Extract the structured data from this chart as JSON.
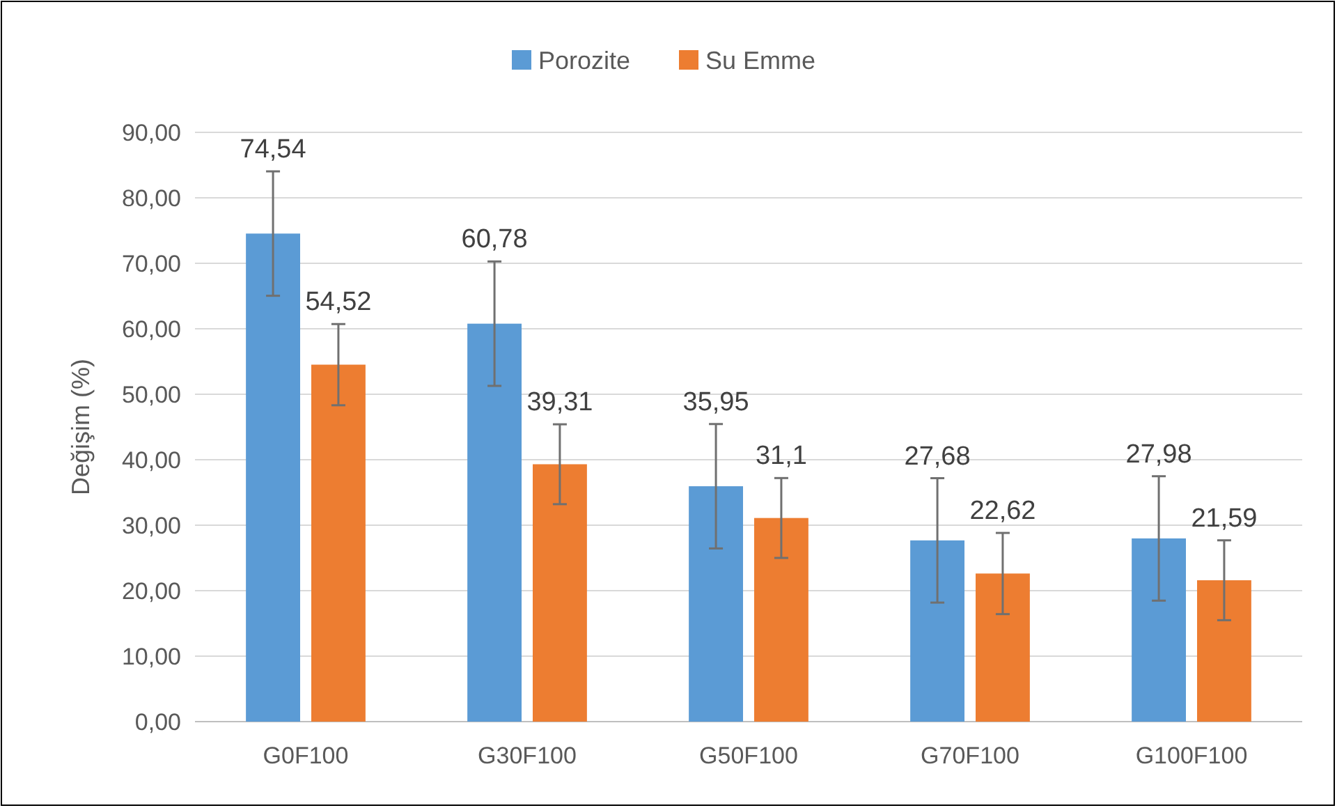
{
  "chart_data": {
    "type": "bar",
    "ylabel": "Değişim (%)",
    "categories": [
      "G0F100",
      "G30F100",
      "G50F100",
      "G70F100",
      "G100F100"
    ],
    "series": [
      {
        "name": "Porozite",
        "color": "#5b9bd5",
        "values": [
          74.54,
          60.78,
          35.95,
          27.68,
          27.98
        ],
        "errors": [
          9.5,
          9.5,
          9.5,
          9.5,
          9.5
        ],
        "value_labels": [
          "74,54",
          "60,78",
          "35,95",
          "27,68",
          "27,98"
        ]
      },
      {
        "name": "Su Emme",
        "color": "#ed7d31",
        "values": [
          54.52,
          39.31,
          31.1,
          22.62,
          21.59
        ],
        "errors": [
          6.2,
          6.1,
          6.1,
          6.2,
          6.1
        ],
        "value_labels": [
          "54,52",
          "39,31",
          "31,1",
          "22,62",
          "21,59"
        ]
      }
    ],
    "ylim": [
      0,
      90
    ],
    "yticks": [
      {
        "value": 0,
        "label": "0,00"
      },
      {
        "value": 10,
        "label": "10,00"
      },
      {
        "value": 20,
        "label": "20,00"
      },
      {
        "value": 30,
        "label": "30,00"
      },
      {
        "value": 40,
        "label": "40,00"
      },
      {
        "value": 50,
        "label": "50,00"
      },
      {
        "value": 60,
        "label": "60,00"
      },
      {
        "value": 70,
        "label": "70,00"
      },
      {
        "value": 80,
        "label": "80,00"
      },
      {
        "value": 90,
        "label": "90,00"
      }
    ],
    "grid": "y",
    "legend": "top"
  }
}
